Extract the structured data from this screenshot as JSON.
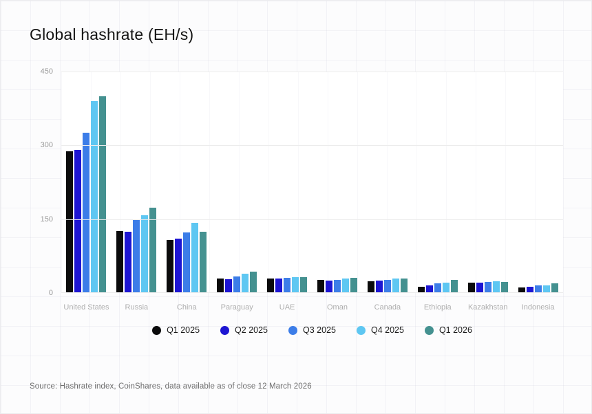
{
  "title": "Global hashrate (EH/s)",
  "source": "Source: Hashrate index, CoinShares, data available as of close 12 March 2026",
  "colors": {
    "q1_2025": "#0b0b0c",
    "q2_2025": "#1d15d2",
    "q3_2025": "#3c7de8",
    "q4_2025": "#5ec7f2",
    "q1_2026": "#449190",
    "gridline": "#ececec",
    "tick_text": "#9a9a9a",
    "category_text": "#aeaeae"
  },
  "chart_data": {
    "type": "bar",
    "title": "Global hashrate (EH/s)",
    "xlabel": "",
    "ylabel": "",
    "ylim": [
      0,
      450
    ],
    "yticks": [
      0,
      150,
      300,
      450
    ],
    "grid": "horizontal",
    "legend_position": "bottom",
    "categories": [
      "United States",
      "Russia",
      "China",
      "Paraguay",
      "UAE",
      "Oman",
      "Canada",
      "Ethiopia",
      "Kazakhstan",
      "Indonesia"
    ],
    "series": [
      {
        "name": "Q1 2025",
        "color": "#0b0b0c",
        "values": [
          288,
          126,
          108,
          29,
          30,
          26,
          24,
          12,
          21,
          11
        ]
      },
      {
        "name": "Q2 2025",
        "color": "#1d15d2",
        "values": [
          290,
          124,
          110,
          28,
          29,
          25,
          25,
          15,
          21,
          12
        ]
      },
      {
        "name": "Q3 2025",
        "color": "#3c7de8",
        "values": [
          325,
          148,
          123,
          34,
          31,
          27,
          27,
          19,
          23,
          15
        ]
      },
      {
        "name": "Q4 2025",
        "color": "#5ec7f2",
        "values": [
          390,
          158,
          143,
          39,
          32,
          30,
          30,
          21,
          24,
          16
        ]
      },
      {
        "name": "Q1 2026",
        "color": "#449190",
        "values": [
          400,
          173,
          124,
          43,
          32,
          31,
          29,
          27,
          23,
          20
        ]
      }
    ]
  }
}
